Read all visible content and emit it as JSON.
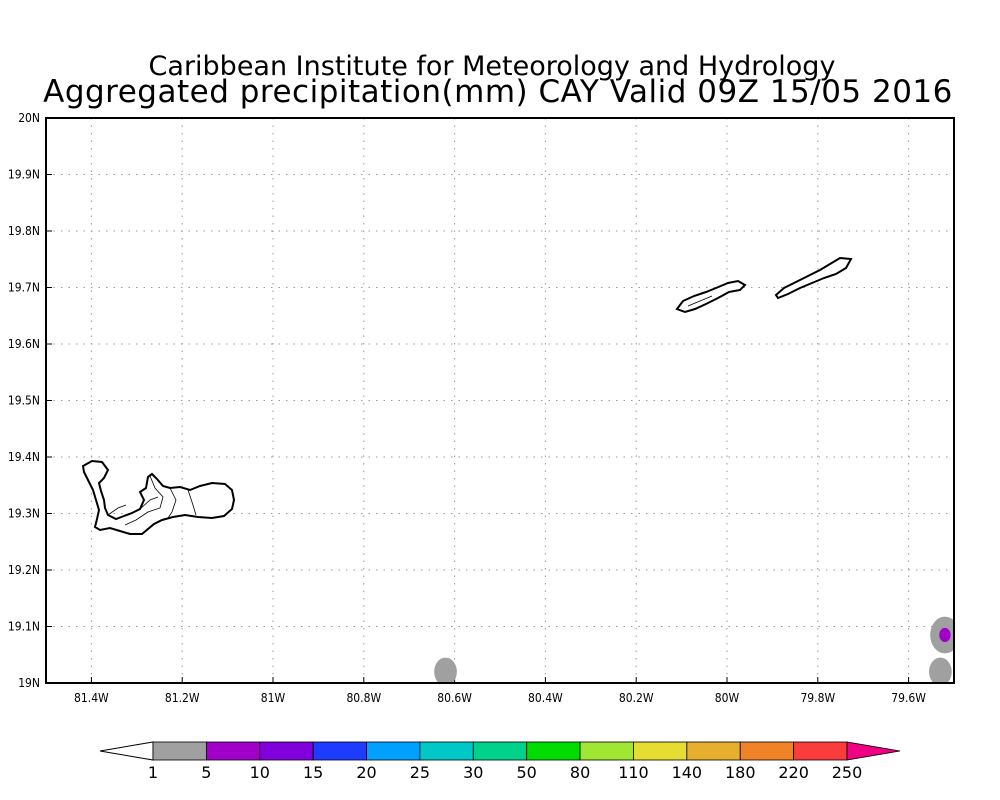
{
  "title": {
    "line1": "Caribbean Institute for Meteorology and Hydrology",
    "line2": "Aggregated precipitation(mm) CAY Valid 09Z 15/05 2016"
  },
  "map": {
    "lon_range": [
      -81.5,
      -79.5
    ],
    "lat_range": [
      19.0,
      20.0
    ],
    "x_ticks": [
      {
        "lon": -81.4,
        "label": "81.4W"
      },
      {
        "lon": -81.2,
        "label": "81.2W"
      },
      {
        "lon": -81.0,
        "label": "81W"
      },
      {
        "lon": -80.8,
        "label": "80.8W"
      },
      {
        "lon": -80.6,
        "label": "80.6W"
      },
      {
        "lon": -80.4,
        "label": "80.4W"
      },
      {
        "lon": -80.2,
        "label": "80.2W"
      },
      {
        "lon": -80.0,
        "label": "80W"
      },
      {
        "lon": -79.8,
        "label": "79.8W"
      },
      {
        "lon": -79.6,
        "label": "79.6W"
      }
    ],
    "y_ticks": [
      {
        "lat": 20.0,
        "label": "20N"
      },
      {
        "lat": 19.9,
        "label": "19.9N"
      },
      {
        "lat": 19.8,
        "label": "19.8N"
      },
      {
        "lat": 19.7,
        "label": "19.7N"
      },
      {
        "lat": 19.6,
        "label": "19.6N"
      },
      {
        "lat": 19.5,
        "label": "19.5N"
      },
      {
        "lat": 19.4,
        "label": "19.4N"
      },
      {
        "lat": 19.3,
        "label": "19.3N"
      },
      {
        "lat": 19.2,
        "label": "19.2N"
      },
      {
        "lat": 19.1,
        "label": "19.1N"
      },
      {
        "lat": 19.0,
        "label": "19N"
      }
    ],
    "grid": "dotted",
    "precip_cells": [
      {
        "lon": -80.62,
        "lat": 19.02,
        "r_deg": 0.05,
        "bin": "1-5",
        "color": "#a0a0a0"
      },
      {
        "lon": -79.52,
        "lat": 19.085,
        "r_deg": 0.065,
        "bin": "1-5",
        "color": "#a0a0a0"
      },
      {
        "lon": -79.52,
        "lat": 19.085,
        "r_deg": 0.025,
        "bin": "5-10",
        "color": "#a000c8"
      },
      {
        "lon": -79.53,
        "lat": 19.02,
        "r_deg": 0.05,
        "bin": "1-5",
        "color": "#a0a0a0"
      }
    ]
  },
  "colorbar": {
    "colors": [
      "#a0a0a0",
      "#a000c8",
      "#8200dc",
      "#1e3cff",
      "#00a0ff",
      "#00c8c8",
      "#00d28c",
      "#00dc00",
      "#a0e632",
      "#e6dc32",
      "#e6af2d",
      "#f08228",
      "#fa3c3c",
      "#f00082"
    ],
    "labels": [
      "1",
      "5",
      "10",
      "15",
      "20",
      "25",
      "30",
      "50",
      "80",
      "110",
      "140",
      "180",
      "220",
      "250"
    ]
  }
}
